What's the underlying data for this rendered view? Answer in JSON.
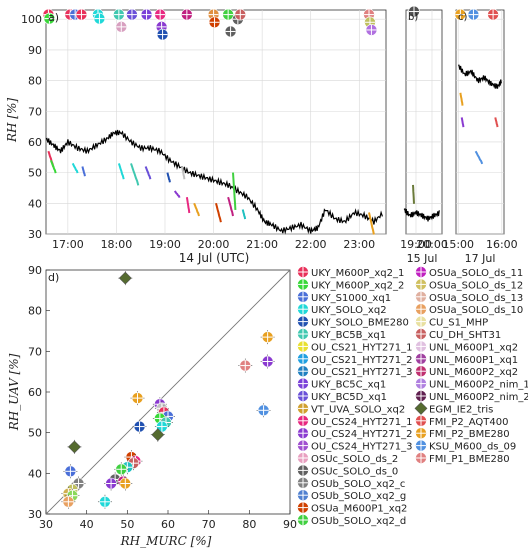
{
  "chart_data": [
    {
      "panel": "a)",
      "type": "line",
      "ylabel": "RH [%]",
      "xlabel": "14 Jul (UTC)",
      "x_ticks": [
        "17:00",
        "18:00",
        "19:00",
        "20:00",
        "21:00",
        "22:00",
        "23:00"
      ],
      "x_range_hours": [
        16.55,
        23.55
      ],
      "ylim": [
        30,
        103
      ],
      "y_ticks": [
        30,
        40,
        50,
        60,
        70,
        80,
        90,
        100
      ],
      "grid": true,
      "reference_series": {
        "color": "#000000",
        "x_hours": [
          16.55,
          16.7,
          16.85,
          17.0,
          17.2,
          17.4,
          17.6,
          17.8,
          17.95,
          18.1,
          18.3,
          18.5,
          18.7,
          18.9,
          19.1,
          19.3,
          19.5,
          19.7,
          19.9,
          20.1,
          20.3,
          20.5,
          20.7,
          20.9,
          21.05,
          21.2,
          21.4,
          21.6,
          21.8,
          22.0,
          22.15,
          22.3,
          22.5,
          22.7,
          22.9,
          23.1,
          23.3,
          23.5
        ],
        "y": [
          61,
          59,
          57,
          60,
          58,
          57,
          59,
          61,
          63,
          63,
          60,
          58,
          58,
          57,
          54,
          52,
          50,
          49,
          48,
          47,
          46,
          44,
          42,
          38,
          34,
          33,
          31,
          32,
          33,
          31,
          32,
          38,
          35,
          34,
          37,
          36,
          34,
          37
        ]
      },
      "markers_at_top": [
        {
          "x_hours": 16.6,
          "y": 101.5,
          "color": "#e8305a"
        },
        {
          "x_hours": 16.62,
          "y": 100.2,
          "color": "#38d838"
        },
        {
          "x_hours": 17.05,
          "y": 101.5,
          "color": "#e8305a"
        },
        {
          "x_hours": 17.15,
          "y": 101.5,
          "color": "#4a6fd8"
        },
        {
          "x_hours": 17.28,
          "y": 101.5,
          "color": "#e8305a"
        },
        {
          "x_hours": 17.62,
          "y": 101.5,
          "color": "#20d8d8"
        },
        {
          "x_hours": 17.65,
          "y": 100.2,
          "color": "#20d8d8"
        },
        {
          "x_hours": 18.05,
          "y": 101.5,
          "color": "#40c8b0"
        },
        {
          "x_hours": 18.32,
          "y": 101.5,
          "color": "#6a50d8"
        },
        {
          "x_hours": 18.1,
          "y": 97.5,
          "color": "#d8a0c0"
        },
        {
          "x_hours": 18.62,
          "y": 101.5,
          "color": "#7a40d8"
        },
        {
          "x_hours": 18.9,
          "y": 101.5,
          "color": "#e82880"
        },
        {
          "x_hours": 18.93,
          "y": 97.5,
          "color": "#8a3ad0"
        },
        {
          "x_hours": 18.95,
          "y": 95.0,
          "color": "#2050b0"
        },
        {
          "x_hours": 19.45,
          "y": 101.5,
          "color": "#c02080"
        },
        {
          "x_hours": 20.0,
          "y": 101.5,
          "color": "#e09040"
        },
        {
          "x_hours": 20.02,
          "y": 99.0,
          "color": "#d04000"
        },
        {
          "x_hours": 20.3,
          "y": 101.5,
          "color": "#40d040"
        },
        {
          "x_hours": 20.5,
          "y": 100.0,
          "color": "#606060"
        },
        {
          "x_hours": 20.55,
          "y": 101.5,
          "color": "#c86060"
        },
        {
          "x_hours": 20.35,
          "y": 96.0,
          "color": "#606060"
        },
        {
          "x_hours": 23.2,
          "y": 101.5,
          "color": "#e08080"
        },
        {
          "x_hours": 23.22,
          "y": 99.0,
          "color": "#c0c060"
        },
        {
          "x_hours": 23.25,
          "y": 96.5,
          "color": "#b070e0"
        }
      ],
      "profile_segments": [
        {
          "x_hours": [
            16.6,
            16.7
          ],
          "y": [
            57,
            52
          ],
          "color": "#e8305a"
        },
        {
          "x_hours": [
            16.65,
            16.75
          ],
          "y": [
            54,
            50
          ],
          "color": "#38d838"
        },
        {
          "x_hours": [
            17.1,
            17.2
          ],
          "y": [
            53,
            50
          ],
          "color": "#20d8d8"
        },
        {
          "x_hours": [
            17.3,
            17.35
          ],
          "y": [
            52,
            49
          ],
          "color": "#4a6fd8"
        },
        {
          "x_hours": [
            18.05,
            18.15
          ],
          "y": [
            53,
            48
          ],
          "color": "#20d8d8"
        },
        {
          "x_hours": [
            18.3,
            18.45
          ],
          "y": [
            53,
            46
          ],
          "color": "#40c8b0"
        },
        {
          "x_hours": [
            18.6,
            18.7
          ],
          "y": [
            52,
            48
          ],
          "color": "#6a50d8"
        },
        {
          "x_hours": [
            19.05,
            19.1
          ],
          "y": [
            50,
            47
          ],
          "color": "#2050b0"
        },
        {
          "x_hours": [
            19.2,
            19.3
          ],
          "y": [
            44,
            42
          ],
          "color": "#8a3ad0"
        },
        {
          "x_hours": [
            19.45,
            19.5
          ],
          "y": [
            42,
            37
          ],
          "color": "#e82880"
        },
        {
          "x_hours": [
            19.35,
            19.4
          ],
          "y": [
            52,
            48
          ],
          "color": "#c0c0c0"
        },
        {
          "x_hours": [
            19.6,
            19.7
          ],
          "y": [
            40,
            36
          ],
          "color": "#e8a020"
        },
        {
          "x_hours": [
            20.05,
            20.15
          ],
          "y": [
            40,
            34
          ],
          "color": "#d04000"
        },
        {
          "x_hours": [
            20.3,
            20.4
          ],
          "y": [
            42,
            36
          ],
          "color": "#c02080"
        },
        {
          "x_hours": [
            20.4,
            20.45
          ],
          "y": [
            50,
            38
          ],
          "color": "#40d040"
        },
        {
          "x_hours": [
            20.6,
            20.65
          ],
          "y": [
            38,
            35
          ],
          "color": "#20c0c0"
        },
        {
          "x_hours": [
            23.2,
            23.3
          ],
          "y": [
            37,
            30
          ],
          "color": "#e8a020"
        }
      ]
    },
    {
      "panel": "b)",
      "type": "line",
      "x_ticks": [
        "19:00",
        "20:00"
      ],
      "xlabel": "15 Jul",
      "grid": true,
      "reference_series": {
        "color": "#000000",
        "x_hours": [
          18.3,
          18.6,
          18.9,
          19.2,
          19.5,
          19.8,
          20.1
        ],
        "y": [
          38,
          36,
          37,
          36,
          35,
          36,
          37
        ]
      },
      "markers_at_top": [
        {
          "x_hours": 18.8,
          "y": 102.5,
          "color": "#505050"
        }
      ],
      "profile_segments": [
        {
          "x_hours": [
            18.75,
            18.8
          ],
          "y": [
            46,
            40
          ],
          "color": "#6a7a3a"
        }
      ]
    },
    {
      "panel": "c)",
      "type": "line",
      "x_ticks": [
        "15:00",
        "16:00"
      ],
      "xlabel": "17 Jul",
      "grid": true,
      "reference_series": {
        "color": "#000000",
        "x_hours": [
          15.0,
          15.15,
          15.3,
          15.45,
          15.6,
          15.75,
          15.9,
          16.0
        ],
        "y": [
          85,
          82,
          83,
          80,
          81,
          79,
          78,
          80
        ]
      },
      "markers_at_top": [
        {
          "x_hours": 15.05,
          "y": 101.5,
          "color": "#e8a020"
        },
        {
          "x_hours": 15.35,
          "y": 101.5,
          "color": "#5090e0"
        },
        {
          "x_hours": 15.8,
          "y": 101.5,
          "color": "#e05050"
        }
      ],
      "profile_segments": [
        {
          "x_hours": [
            15.05,
            15.1
          ],
          "y": [
            76,
            72
          ],
          "color": "#e8a020"
        },
        {
          "x_hours": [
            15.08,
            15.12
          ],
          "y": [
            68,
            65
          ],
          "color": "#8a3ad0"
        },
        {
          "x_hours": [
            15.4,
            15.55
          ],
          "y": [
            57,
            53
          ],
          "color": "#5090e0"
        },
        {
          "x_hours": [
            15.85,
            15.9
          ],
          "y": [
            68,
            65
          ],
          "color": "#e05050"
        }
      ]
    },
    {
      "panel": "d)",
      "type": "scatter",
      "xlabel": "RH_MURC [%]",
      "ylabel": "RH_UAV [%]",
      "xlim": [
        30,
        90
      ],
      "ylim": [
        30,
        90
      ],
      "x_ticks": [
        30,
        40,
        50,
        60,
        70,
        80,
        90
      ],
      "y_ticks": [
        30,
        40,
        50,
        60,
        70,
        80,
        90
      ],
      "one_to_one_line": true,
      "points": [
        {
          "x": 49.5,
          "y": 88.0,
          "color": "#556b2f",
          "marker": "diamond"
        },
        {
          "x": 84.5,
          "y": 73.5,
          "color": "#e8a020"
        },
        {
          "x": 84.5,
          "y": 67.5,
          "color": "#8a3ad0"
        },
        {
          "x": 79.0,
          "y": 66.5,
          "color": "#e08080"
        },
        {
          "x": 83.5,
          "y": 55.5,
          "color": "#5090e0"
        },
        {
          "x": 52.5,
          "y": 58.5,
          "color": "#e8a020"
        },
        {
          "x": 58.0,
          "y": 57.0,
          "color": "#8a3ad0"
        },
        {
          "x": 58.5,
          "y": 56.0,
          "color": "#c0c0c0"
        },
        {
          "x": 59.0,
          "y": 55.0,
          "color": "#e8305a"
        },
        {
          "x": 60.0,
          "y": 54.0,
          "color": "#4a6fd8"
        },
        {
          "x": 58.0,
          "y": 53.5,
          "color": "#38d838"
        },
        {
          "x": 59.5,
          "y": 52.5,
          "color": "#40c8b0"
        },
        {
          "x": 58.5,
          "y": 51.5,
          "color": "#20d8d8"
        },
        {
          "x": 53.0,
          "y": 51.5,
          "color": "#2050b0"
        },
        {
          "x": 57.5,
          "y": 49.5,
          "color": "#556b2f",
          "marker": "diamond"
        },
        {
          "x": 37.0,
          "y": 46.5,
          "color": "#556b2f",
          "marker": "diamond"
        },
        {
          "x": 51.0,
          "y": 44.0,
          "color": "#d04000"
        },
        {
          "x": 52.0,
          "y": 43.0,
          "color": "#e82880"
        },
        {
          "x": 51.5,
          "y": 42.5,
          "color": "#c86060"
        },
        {
          "x": 50.0,
          "y": 41.5,
          "color": "#20c0c0"
        },
        {
          "x": 48.5,
          "y": 41.0,
          "color": "#40d040"
        },
        {
          "x": 36.0,
          "y": 40.5,
          "color": "#4a6fd8"
        },
        {
          "x": 47.0,
          "y": 38.5,
          "color": "#606060"
        },
        {
          "x": 49.0,
          "y": 38.0,
          "color": "#c02080"
        },
        {
          "x": 49.5,
          "y": 37.5,
          "color": "#e8a020"
        },
        {
          "x": 46.0,
          "y": 37.5,
          "color": "#8a3ad0"
        },
        {
          "x": 38.0,
          "y": 37.5,
          "color": "#808080"
        },
        {
          "x": 36.5,
          "y": 36.0,
          "color": "#c0c060"
        },
        {
          "x": 35.5,
          "y": 35.0,
          "color": "#d0b050"
        },
        {
          "x": 36.5,
          "y": 34.5,
          "color": "#8ad85a"
        },
        {
          "x": 35.5,
          "y": 33.0,
          "color": "#e8a060"
        },
        {
          "x": 44.5,
          "y": 33.0,
          "color": "#20d8d8"
        }
      ]
    }
  ],
  "legend_col1": [
    {
      "label": "UKY_M600P_xq2_1",
      "color": "#e8305a"
    },
    {
      "label": "UKY_M600P_xq2_2",
      "color": "#38d838"
    },
    {
      "label": "UKY_S1000_xq1",
      "color": "#4a6fd8"
    },
    {
      "label": "UKY_SOLO_xq2",
      "color": "#20d8d8"
    },
    {
      "label": "UKY_SOLO_BME280",
      "color": "#2050b0"
    },
    {
      "label": "UKY_BC5B_xq1",
      "color": "#40c8b0"
    },
    {
      "label": "OU_CS21_HYT271_1",
      "color": "#e8e030"
    },
    {
      "label": "OU_CS21_HYT271_2",
      "color": "#20a0e0"
    },
    {
      "label": "OU_CS21_HYT271_3",
      "color": "#2080c0"
    },
    {
      "label": "UKY_BC5C_xq1",
      "color": "#7a40d8"
    },
    {
      "label": "UKY_BC5D_xq1",
      "color": "#6a50d8"
    },
    {
      "label": "VT_UVA_SOLO_xq2",
      "color": "#d0a030"
    },
    {
      "label": "OU_CS24_HYT271_1",
      "color": "#e82880"
    },
    {
      "label": "OU_CS24_HYT271_2",
      "color": "#8a3ad0"
    },
    {
      "label": "OU_CS24_HYT271_3",
      "color": "#a050d0"
    },
    {
      "label": "OSUc_SOLO_ds_2",
      "color": "#e8a0c0"
    },
    {
      "label": "OSUc_SOLO_ds_0",
      "color": "#606060"
    },
    {
      "label": "OSUb_SOLO_xq2_c",
      "color": "#808080"
    },
    {
      "label": "OSUb_SOLO_xq2_g",
      "color": "#5080d0"
    },
    {
      "label": "OSUa_M600P1_xq2",
      "color": "#d04000"
    },
    {
      "label": "OSUb_SOLO_xq2_d",
      "color": "#40d040"
    }
  ],
  "legend_col2": [
    {
      "label": "OSUa_SOLO_ds_11",
      "color": "#c020c0"
    },
    {
      "label": "OSUa_SOLO_ds_12",
      "color": "#d0c060"
    },
    {
      "label": "OSUa_SOLO_ds_13",
      "color": "#e0b0a0"
    },
    {
      "label": "OSUa_SOLO_ds_10",
      "color": "#e8a060"
    },
    {
      "label": "CU_S1_MHP",
      "color": "#e8e0a0"
    },
    {
      "label": "CU_DH_SHT31",
      "color": "#c86060"
    },
    {
      "label": "UNL_M600P1_xq2",
      "color": "#e0c0e0"
    },
    {
      "label": "UNL_M600P1_xq1",
      "color": "#a040a0"
    },
    {
      "label": "UNL_M600P2_xq2",
      "color": "#c03070"
    },
    {
      "label": "UNL_M600P2_nim_1",
      "color": "#b080e0"
    },
    {
      "label": "UNL_M600P2_nim_2",
      "color": "#602050"
    },
    {
      "label": "EGM_IE2_tris",
      "color": "#556b2f"
    },
    {
      "label": "FMI_P2_AQT400",
      "color": "#e05050"
    },
    {
      "label": "FMI_P2_BME280",
      "color": "#e8a020"
    },
    {
      "label": "KSU_M600_ds_09",
      "color": "#5090e0"
    },
    {
      "label": "FMI_P1_BME280",
      "color": "#e08080"
    }
  ]
}
